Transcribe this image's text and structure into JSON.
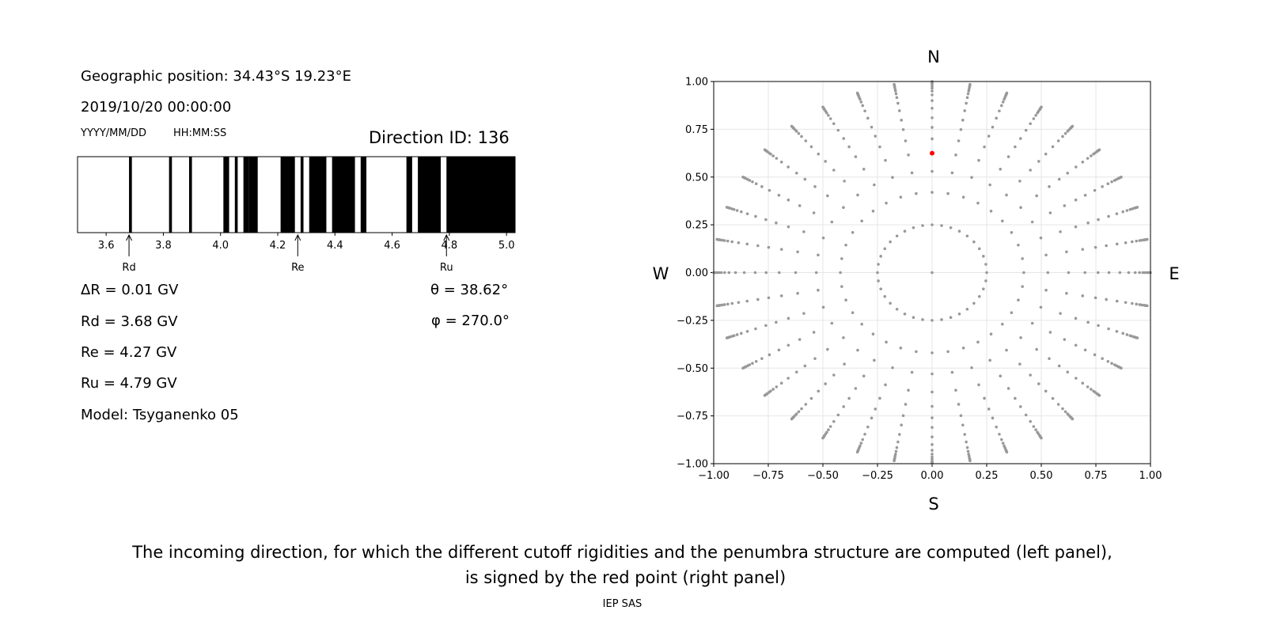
{
  "left_panel": {
    "geo_position": "Geographic position: 34.43°S 19.23°E",
    "datetime": "2019/10/20 00:00:00",
    "date_format": "YYYY/MM/DD",
    "time_format": "HH:MM:SS",
    "direction_id": "Direction ID: 136",
    "delta_r": "ΔR = 0.01 GV",
    "rd": "Rd = 3.68 GV",
    "re": "Re = 4.27 GV",
    "ru": "Ru = 4.79 GV",
    "model": "Model: Tsyganenko 05",
    "theta": "θ = 38.62°",
    "phi": "φ = 270.0°"
  },
  "caption_line1": "The incoming direction, for which the different cutoff rigidities and the penumbra structure are computed (left panel),",
  "caption_line2": "is signed by the red point (right panel)",
  "footer": "IEP SAS",
  "chart_data": [
    {
      "type": "bar",
      "subtype": "penumbra-strip",
      "xlim": [
        3.5,
        5.03
      ],
      "xticks": [
        "3.6",
        "3.8",
        "4.0",
        "4.2",
        "4.4",
        "4.6",
        "4.8",
        "5.0"
      ],
      "allowed_bands_GV": [
        [
          3.68,
          3.69
        ],
        [
          3.82,
          3.83
        ],
        [
          3.89,
          3.9
        ],
        [
          4.01,
          4.03
        ],
        [
          4.05,
          4.06
        ],
        [
          4.08,
          4.1
        ],
        [
          4.1,
          4.13
        ],
        [
          4.21,
          4.26
        ],
        [
          4.28,
          4.29
        ],
        [
          4.31,
          4.37
        ],
        [
          4.39,
          4.47
        ],
        [
          4.49,
          4.51
        ],
        [
          4.65,
          4.67
        ],
        [
          4.69,
          4.77
        ],
        [
          4.79,
          5.03
        ]
      ],
      "markers": [
        {
          "label": "Rd",
          "value": 3.68
        },
        {
          "label": "Re",
          "value": 4.27
        },
        {
          "label": "Ru",
          "value": 4.79
        }
      ],
      "colors": {
        "allowed": "#000000",
        "forbidden": "#ffffff"
      }
    },
    {
      "type": "scatter",
      "xlim": [
        -1,
        1
      ],
      "ylim": [
        -1,
        1
      ],
      "ticks": [
        "-1.00",
        "-0.75",
        "-0.50",
        "-0.25",
        "0.00",
        "0.25",
        "0.50",
        "0.75",
        "1.00"
      ],
      "grid": true,
      "compass": {
        "top": "N",
        "bottom": "S",
        "left": "W",
        "right": "E"
      },
      "ray_azimuth_step_deg": 10,
      "inner_circle_radius": 0.25,
      "ray_radii": [
        0.42,
        0.53,
        0.625,
        0.7,
        0.76,
        0.81,
        0.86,
        0.9,
        0.93,
        0.95,
        0.965,
        0.975,
        0.985,
        0.99,
        0.995,
        1.0
      ],
      "center_point": [
        0,
        0
      ],
      "selected_point": {
        "x": 0.0,
        "y": 0.625,
        "color": "#ff0000"
      },
      "point_color": "#999999"
    }
  ]
}
